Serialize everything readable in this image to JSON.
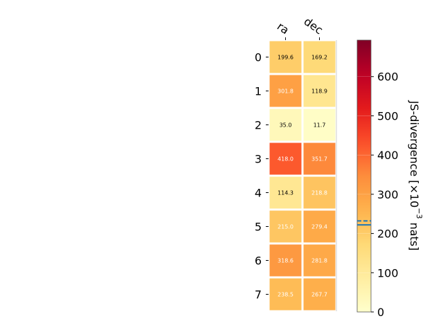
{
  "chart_data": {
    "type": "heatmap",
    "columns": [
      "ra",
      "dec"
    ],
    "rows": [
      "0",
      "1",
      "2",
      "3",
      "4",
      "5",
      "6",
      "7"
    ],
    "values": [
      [
        199.6,
        169.2
      ],
      [
        301.8,
        118.9
      ],
      [
        35.0,
        11.7
      ],
      [
        418.0,
        351.7
      ],
      [
        114.3,
        218.8
      ],
      [
        215.0,
        279.4
      ],
      [
        318.6,
        281.8
      ],
      [
        238.5,
        267.7
      ]
    ],
    "value_labels": [
      [
        "199.6",
        "169.2"
      ],
      [
        "301.8",
        "118.9"
      ],
      [
        "35.0",
        "11.7"
      ],
      [
        "418.0",
        "351.7"
      ],
      [
        "114.3",
        "218.8"
      ],
      [
        "215.0",
        "279.4"
      ],
      [
        "318.6",
        "281.8"
      ],
      [
        "238.5",
        "267.7"
      ]
    ],
    "colorbar": {
      "label_prefix": "JS-divergence [×10",
      "label_exp": "−3",
      "label_suffix": " nats]",
      "range": [
        0,
        693
      ],
      "ticks": [
        "0",
        "100",
        "200",
        "300",
        "400",
        "500",
        "600"
      ],
      "tick_values": [
        0,
        100,
        200,
        300,
        400,
        500,
        600
      ],
      "markers": [
        222,
        232
      ],
      "colormap": "YlOrRd"
    },
    "colors": {
      "marker": "#1f77b4",
      "cell_dark_text": "#000000",
      "cell_light_text": "#ffffff"
    }
  }
}
